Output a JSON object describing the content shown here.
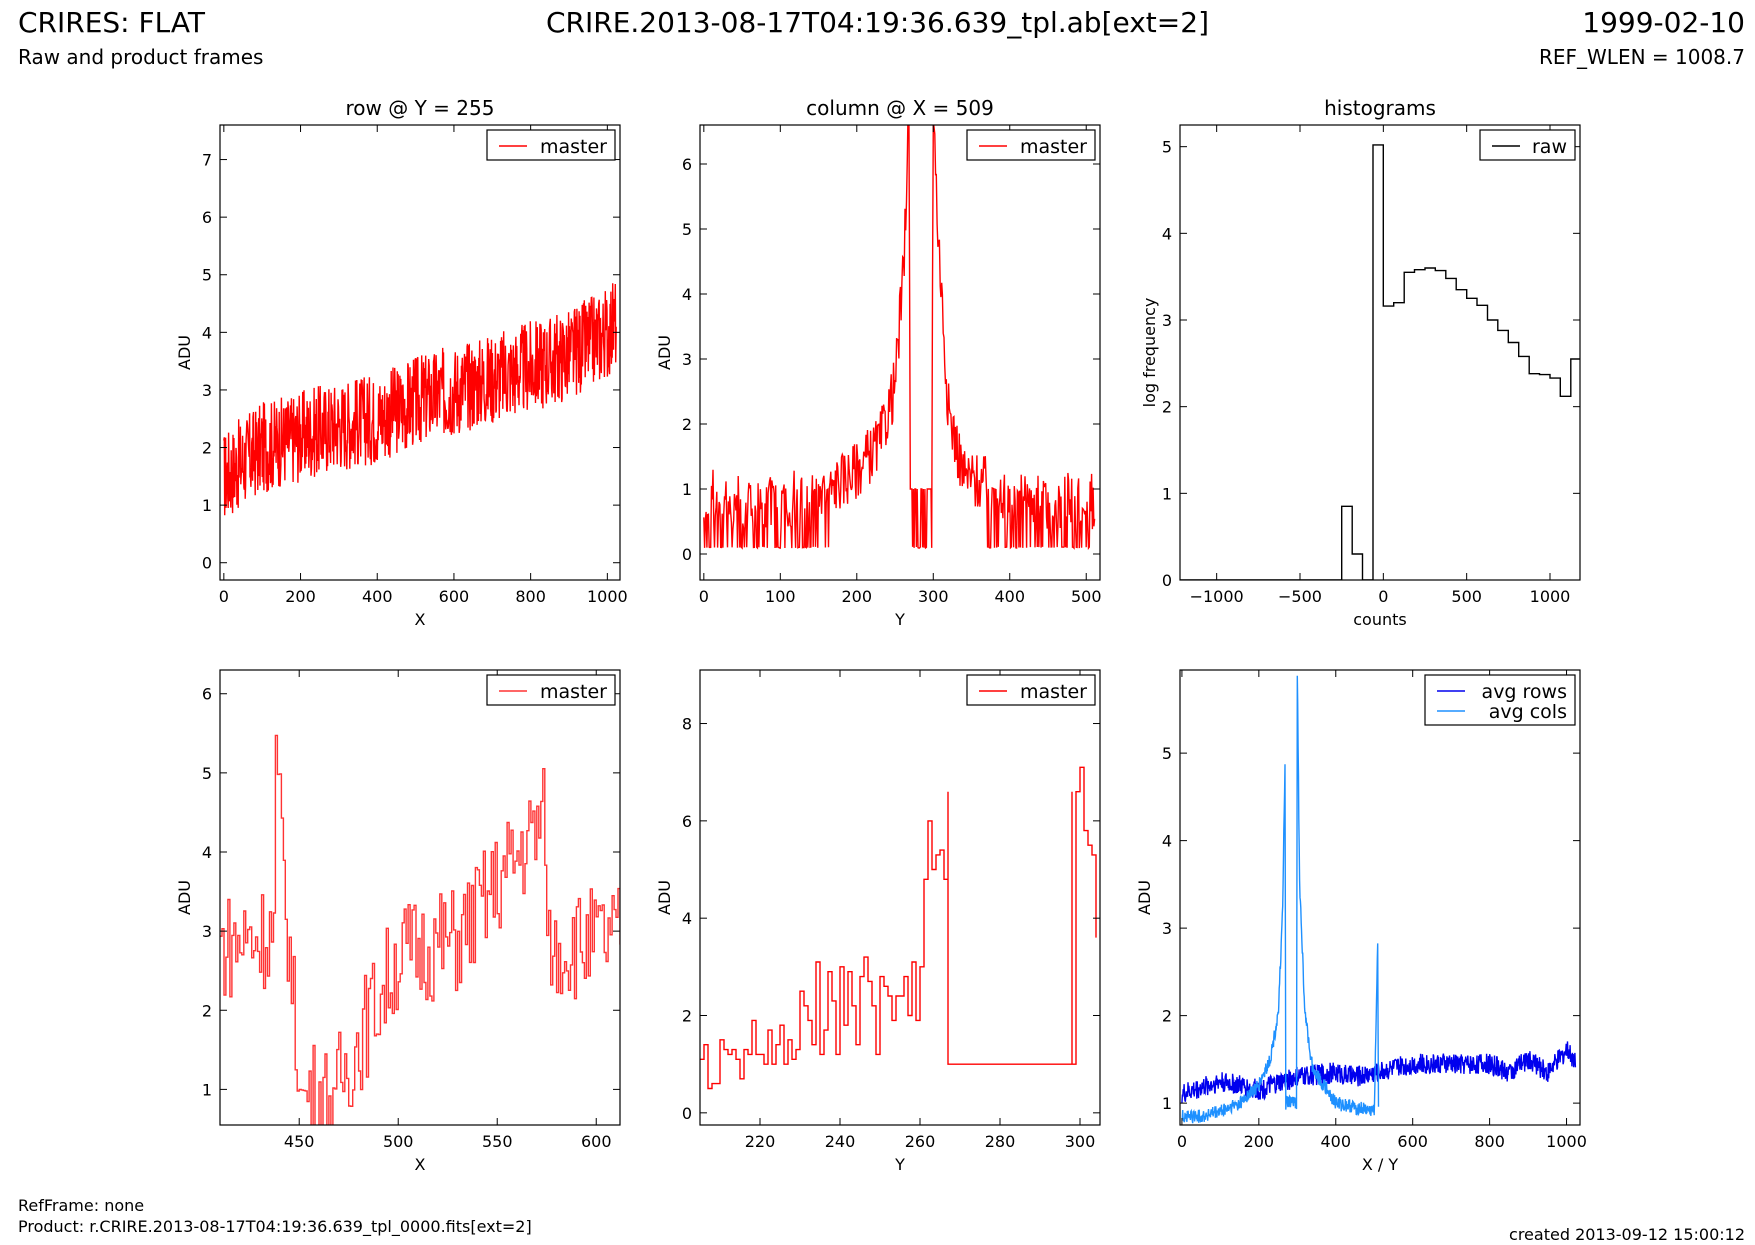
{
  "header": {
    "title": "CRIRES: FLAT",
    "subtitle": "Raw and product frames",
    "file": "CRIRE.2013-08-17T04:19:36.639_tpl.ab[ext=2]",
    "date": "1999-02-10",
    "ref_wlen": "REF_WLEN = 1008.7"
  },
  "footer": {
    "refframe": "RefFrame: none",
    "product": "Product: r.CRIRE.2013-08-17T04:19:36.639_tpl_0000.fits[ext=2]",
    "created": "created 2013-09-12 15:00:12"
  },
  "colors": {
    "red": "#ff0000",
    "lightred": "#ff3333",
    "black": "#000000",
    "blue": "#0000ee",
    "skyblue": "#1e90ff"
  },
  "chart_data": [
    {
      "type": "line",
      "title": "row @ Y = 255",
      "xlabel": "X",
      "ylabel": "ADU",
      "xlim": [
        -10,
        1033
      ],
      "ylim": [
        -0.3,
        7.6
      ],
      "xticks": [
        0,
        200,
        400,
        600,
        800,
        1000
      ],
      "yticks": [
        0,
        1,
        2,
        3,
        4,
        5,
        6,
        7
      ],
      "legend": "top-right",
      "grid": false,
      "series": [
        {
          "name": "master",
          "color": "#ff0000",
          "noisy": true,
          "x": [
            0,
            100,
            200,
            300,
            400,
            500,
            600,
            700,
            800,
            900,
            1000,
            1023
          ],
          "y": [
            1.5,
            2.0,
            2.2,
            2.4,
            2.5,
            2.8,
            3.0,
            3.2,
            3.4,
            3.6,
            4.0,
            4.2
          ],
          "noise": 0.8
        }
      ]
    },
    {
      "type": "line",
      "title": "column @ X = 509",
      "xlabel": "Y",
      "ylabel": "ADU",
      "xlim": [
        -5,
        518
      ],
      "ylim": [
        -0.4,
        6.6
      ],
      "xticks": [
        0,
        100,
        200,
        300,
        400,
        500
      ],
      "yticks": [
        0,
        1,
        2,
        3,
        4,
        5,
        6
      ],
      "legend": "top-right",
      "grid": false,
      "series": [
        {
          "name": "master",
          "color": "#ff0000",
          "noisy": true,
          "x": [
            0,
            50,
            100,
            150,
            200,
            230,
            250,
            262,
            268,
            270,
            298,
            300,
            306,
            320,
            340,
            400,
            450,
            511
          ],
          "y": [
            0.9,
            0.8,
            0.8,
            0.9,
            1.3,
            1.7,
            2.6,
            4.5,
            7.0,
            1.0,
            1.0,
            7.0,
            5.0,
            2.2,
            1.2,
            0.9,
            0.8,
            0.8
          ],
          "noise": 0.45
        }
      ]
    },
    {
      "type": "line",
      "title": "histograms",
      "xlabel": "counts",
      "ylabel": "log frequency",
      "xlim": [
        -1220,
        1180
      ],
      "ylim": [
        0,
        5.25
      ],
      "xticks": [
        -1000,
        -500,
        0,
        500,
        1000
      ],
      "yticks": [
        0,
        1,
        2,
        3,
        4,
        5
      ],
      "legend": "top-right",
      "grid": false,
      "step": true,
      "series": [
        {
          "name": "raw",
          "color": "#000000",
          "x": [
            -1220,
            -250,
            -250,
            -187,
            -125,
            -125,
            -62,
            -62,
            0,
            0,
            62,
            125,
            187,
            250,
            312,
            375,
            437,
            500,
            562,
            625,
            687,
            750,
            812,
            875,
            937,
            1000,
            1062,
            1125,
            1180
          ],
          "y": [
            0,
            0,
            0.85,
            0.3,
            0.3,
            0,
            0,
            5.02,
            4.87,
            3.16,
            3.2,
            3.55,
            3.58,
            3.6,
            3.57,
            3.48,
            3.35,
            3.25,
            3.17,
            3.0,
            2.88,
            2.74,
            2.58,
            2.38,
            2.37,
            2.33,
            2.12,
            2.55,
            2.55
          ]
        }
      ]
    },
    {
      "type": "line",
      "title": "",
      "xlabel": "X",
      "ylabel": "ADU",
      "xlim": [
        410,
        612
      ],
      "ylim": [
        0.55,
        6.3
      ],
      "xticks": [
        450,
        500,
        550,
        600
      ],
      "yticks": [
        1,
        2,
        3,
        4,
        5,
        6
      ],
      "legend": "top-right",
      "grid": false,
      "step": true,
      "series": [
        {
          "name": "master",
          "color": "#ff3333",
          "noisy": true,
          "x": [
            410,
            437,
            438,
            450,
            466,
            500,
            530,
            574,
            575,
            612
          ],
          "y": [
            2.8,
            3.0,
            5.05,
            1.0,
            0.9,
            2.7,
            2.9,
            4.45,
            2.8,
            2.9
          ],
          "noise": 0.7
        }
      ]
    },
    {
      "type": "line",
      "title": "",
      "xlabel": "Y",
      "ylabel": "ADU",
      "xlim": [
        205,
        305
      ],
      "ylim": [
        -0.25,
        9.1
      ],
      "xticks": [
        220,
        240,
        260,
        280,
        300
      ],
      "yticks": [
        0,
        2,
        4,
        6,
        8
      ],
      "legend": "top-right",
      "grid": false,
      "step": true,
      "series": [
        {
          "name": "master",
          "color": "#ff0000",
          "x": [
            205,
            206,
            207,
            208,
            209,
            210,
            211,
            212,
            213,
            214,
            215,
            216,
            217,
            218,
            219,
            220,
            221,
            222,
            223,
            224,
            225,
            226,
            227,
            228,
            229,
            230,
            231,
            232,
            233,
            234,
            235,
            236,
            237,
            238,
            239,
            240,
            241,
            242,
            243,
            244,
            245,
            246,
            247,
            248,
            249,
            250,
            251,
            252,
            253,
            254,
            255,
            256,
            257,
            258,
            259,
            260,
            261,
            262,
            263,
            264,
            265,
            266,
            267,
            298,
            299,
            300,
            301,
            302,
            303,
            304
          ],
          "y": [
            1.1,
            1.4,
            0.5,
            0.6,
            0.6,
            1.5,
            1.3,
            1.2,
            1.3,
            1.1,
            0.7,
            1.3,
            1.2,
            1.9,
            1.2,
            1.2,
            1.0,
            1.7,
            1.0,
            1.4,
            1.8,
            1.0,
            1.5,
            1.1,
            1.3,
            2.5,
            2.2,
            1.9,
            1.4,
            3.1,
            1.2,
            1.7,
            2.9,
            2.3,
            1.2,
            3.0,
            1.8,
            2.9,
            2.2,
            1.4,
            2.8,
            3.2,
            2.7,
            2.2,
            1.2,
            2.8,
            2.6,
            2.4,
            1.9,
            2.4,
            2.4,
            2.8,
            2.0,
            3.1,
            1.9,
            3.0,
            4.8,
            6.0,
            5.0,
            5.3,
            5.4,
            4.8,
            6.6,
            1.0,
            6.6,
            7.1,
            5.8,
            5.5,
            5.3,
            3.6
          ],
          "flat_after": 267
        }
      ]
    },
    {
      "type": "line",
      "title": "",
      "xlabel": "X / Y",
      "ylabel": "ADU",
      "xlim": [
        -5,
        1035
      ],
      "ylim": [
        0.75,
        5.95
      ],
      "xticks": [
        0,
        200,
        400,
        600,
        800,
        1000
      ],
      "yticks": [
        1,
        2,
        3,
        4,
        5
      ],
      "legend": "top-right",
      "grid": false,
      "series": [
        {
          "name": "avg rows",
          "color": "#0000ee",
          "noisy": true,
          "x": [
            0,
            100,
            200,
            300,
            400,
            450,
            500,
            600,
            700,
            800,
            850,
            900,
            950,
            1000,
            1023
          ],
          "y": [
            1.1,
            1.25,
            1.15,
            1.3,
            1.35,
            1.3,
            1.35,
            1.45,
            1.45,
            1.45,
            1.35,
            1.5,
            1.35,
            1.6,
            1.5
          ],
          "noise": 0.12
        },
        {
          "name": "avg cols",
          "color": "#1e90ff",
          "noisy": true,
          "x": [
            0,
            50,
            100,
            150,
            200,
            230,
            250,
            262,
            268,
            270,
            298,
            300,
            306,
            320,
            340,
            400,
            450,
            500,
            509,
            511
          ],
          "y": [
            0.85,
            0.85,
            0.9,
            1.0,
            1.2,
            1.5,
            2.0,
            3.2,
            4.9,
            1.0,
            1.0,
            5.9,
            3.5,
            2.0,
            1.4,
            1.0,
            0.95,
            0.9,
            2.85,
            0.9
          ],
          "noise": 0.08
        }
      ]
    }
  ]
}
